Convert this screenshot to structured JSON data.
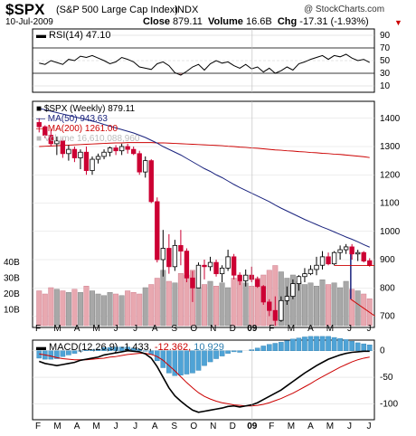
{
  "header": {
    "symbol": "$SPX",
    "full_name": "(S&P 500 Large Cap Index)",
    "exchange": "INDX",
    "credit": "@ StockCharts.com",
    "date": "10-Jul-2009",
    "close_label": "Close",
    "close_value": "879.11",
    "volume_label": "Volume",
    "volume_value": "16.6B",
    "chg_label": "Chg",
    "chg_value": "-17.31 (-1.93%)",
    "chg_arrow": "▼"
  },
  "colors": {
    "up": "#000000",
    "down": "#cc0033",
    "ma50": "#1a237e",
    "ma200": "#cc0000",
    "volume_up": "#a8a8a8",
    "volume_down": "#e8a8b0",
    "macd_hist": "#4fa3d6",
    "macd_line": "#000000",
    "signal_line": "#cc0000"
  },
  "x_axis": {
    "labels": [
      "F",
      "M",
      "A",
      "M",
      "J",
      "J",
      "A",
      "S",
      "O",
      "N",
      "D",
      "09",
      "F",
      "M",
      "A",
      "M",
      "J",
      "J"
    ]
  },
  "chart_data": [
    {
      "type": "line",
      "title": "RSI(14) 47.10",
      "legend": [
        {
          "name": "RSI(14)",
          "value": "47.10"
        }
      ],
      "y_ticks": [
        90,
        70,
        50,
        30,
        10
      ],
      "ylim": [
        0,
        100
      ],
      "levels": [
        70,
        30
      ],
      "series": [
        {
          "name": "RSI(14)",
          "values": [
            46,
            44,
            50,
            47,
            44,
            52,
            50,
            57,
            55,
            58,
            54,
            50,
            45,
            48,
            55,
            52,
            48,
            40,
            38,
            36,
            45,
            48,
            42,
            31,
            27,
            33,
            40,
            44,
            35,
            45,
            50,
            46,
            48,
            42,
            38,
            44,
            37,
            40,
            32,
            38,
            30,
            34,
            40,
            35,
            45,
            48,
            52,
            55,
            58,
            52,
            58,
            56,
            60,
            54,
            50,
            52,
            47
          ]
        }
      ]
    },
    {
      "type": "candlestick",
      "title": "$SPX (Weekly) 879.11",
      "legend": [
        {
          "name": "$SPX (Weekly)",
          "value": "879.11"
        },
        {
          "name": "MA(50)",
          "value": "943.63"
        },
        {
          "name": "MA(200)",
          "value": "1261.00"
        },
        {
          "name": "Volume",
          "value": "16,610,088,960"
        }
      ],
      "y_ticks": [
        1400,
        1300,
        1200,
        1100,
        1000,
        900,
        800,
        700
      ],
      "ylim": [
        660,
        1460
      ],
      "price_ticks_shown": [
        "1400",
        "1300",
        "1200",
        "1100",
        "1000",
        "900",
        "800",
        "700"
      ],
      "volume_ticks_shown": [
        "40B",
        "30B",
        "20B",
        "10B"
      ],
      "volume_ylim": [
        0,
        40
      ],
      "candles": [
        {
          "o": 1385,
          "h": 1400,
          "l": 1350,
          "c": 1370
        },
        {
          "o": 1370,
          "h": 1375,
          "l": 1330,
          "c": 1340
        },
        {
          "o": 1340,
          "h": 1360,
          "l": 1300,
          "c": 1310
        },
        {
          "o": 1310,
          "h": 1335,
          "l": 1270,
          "c": 1320
        },
        {
          "o": 1320,
          "h": 1330,
          "l": 1260,
          "c": 1275
        },
        {
          "o": 1275,
          "h": 1305,
          "l": 1250,
          "c": 1290
        },
        {
          "o": 1290,
          "h": 1300,
          "l": 1245,
          "c": 1260
        },
        {
          "o": 1260,
          "h": 1290,
          "l": 1220,
          "c": 1280
        },
        {
          "o": 1280,
          "h": 1300,
          "l": 1200,
          "c": 1215
        },
        {
          "o": 1215,
          "h": 1265,
          "l": 1200,
          "c": 1255
        },
        {
          "o": 1255,
          "h": 1275,
          "l": 1240,
          "c": 1265
        },
        {
          "o": 1265,
          "h": 1290,
          "l": 1255,
          "c": 1280
        },
        {
          "o": 1280,
          "h": 1300,
          "l": 1265,
          "c": 1295
        },
        {
          "o": 1295,
          "h": 1305,
          "l": 1270,
          "c": 1285
        },
        {
          "o": 1285,
          "h": 1310,
          "l": 1270,
          "c": 1300
        },
        {
          "o": 1300,
          "h": 1310,
          "l": 1275,
          "c": 1290
        },
        {
          "o": 1290,
          "h": 1300,
          "l": 1270,
          "c": 1275
        },
        {
          "o": 1275,
          "h": 1285,
          "l": 1200,
          "c": 1210
        },
        {
          "o": 1210,
          "h": 1265,
          "l": 1190,
          "c": 1250
        },
        {
          "o": 1250,
          "h": 1255,
          "l": 1100,
          "c": 1105
        },
        {
          "o": 1105,
          "h": 1120,
          "l": 890,
          "c": 900
        },
        {
          "o": 900,
          "h": 1005,
          "l": 840,
          "c": 940
        },
        {
          "o": 940,
          "h": 990,
          "l": 850,
          "c": 875
        },
        {
          "o": 875,
          "h": 970,
          "l": 860,
          "c": 950
        },
        {
          "o": 950,
          "h": 1005,
          "l": 880,
          "c": 930
        },
        {
          "o": 930,
          "h": 940,
          "l": 820,
          "c": 835
        },
        {
          "o": 835,
          "h": 860,
          "l": 750,
          "c": 800
        },
        {
          "o": 800,
          "h": 890,
          "l": 800,
          "c": 880
        },
        {
          "o": 880,
          "h": 900,
          "l": 830,
          "c": 875
        },
        {
          "o": 875,
          "h": 910,
          "l": 860,
          "c": 890
        },
        {
          "o": 890,
          "h": 900,
          "l": 840,
          "c": 850
        },
        {
          "o": 850,
          "h": 880,
          "l": 820,
          "c": 870
        },
        {
          "o": 870,
          "h": 935,
          "l": 860,
          "c": 910
        },
        {
          "o": 910,
          "h": 920,
          "l": 830,
          "c": 845
        },
        {
          "o": 845,
          "h": 855,
          "l": 810,
          "c": 825
        },
        {
          "o": 825,
          "h": 865,
          "l": 805,
          "c": 845
        },
        {
          "o": 845,
          "h": 875,
          "l": 820,
          "c": 830
        },
        {
          "o": 830,
          "h": 840,
          "l": 800,
          "c": 805
        },
        {
          "o": 805,
          "h": 810,
          "l": 740,
          "c": 750
        },
        {
          "o": 750,
          "h": 760,
          "l": 700,
          "c": 720
        },
        {
          "o": 720,
          "h": 770,
          "l": 666,
          "c": 685
        },
        {
          "o": 685,
          "h": 770,
          "l": 680,
          "c": 755
        },
        {
          "o": 755,
          "h": 805,
          "l": 740,
          "c": 770
        },
        {
          "o": 770,
          "h": 830,
          "l": 760,
          "c": 815
        },
        {
          "o": 815,
          "h": 845,
          "l": 790,
          "c": 840
        },
        {
          "o": 840,
          "h": 870,
          "l": 820,
          "c": 850
        },
        {
          "o": 850,
          "h": 880,
          "l": 845,
          "c": 865
        },
        {
          "o": 865,
          "h": 910,
          "l": 845,
          "c": 880
        },
        {
          "o": 880,
          "h": 930,
          "l": 865,
          "c": 910
        },
        {
          "o": 910,
          "h": 925,
          "l": 880,
          "c": 885
        },
        {
          "o": 885,
          "h": 930,
          "l": 880,
          "c": 925
        },
        {
          "o": 925,
          "h": 950,
          "l": 900,
          "c": 935
        },
        {
          "o": 935,
          "h": 955,
          "l": 920,
          "c": 945
        },
        {
          "o": 945,
          "h": 955,
          "l": 900,
          "c": 920
        },
        {
          "o": 920,
          "h": 935,
          "l": 895,
          "c": 925
        },
        {
          "o": 925,
          "h": 930,
          "l": 890,
          "c": 895
        },
        {
          "o": 896,
          "h": 905,
          "l": 875,
          "c": 879
        }
      ],
      "ma50": [
        1435,
        1430,
        1425,
        1420,
        1415,
        1410,
        1405,
        1400,
        1395,
        1390,
        1385,
        1378,
        1372,
        1366,
        1360,
        1354,
        1348,
        1340,
        1332,
        1322,
        1312,
        1300,
        1290,
        1280,
        1270,
        1258,
        1246,
        1234,
        1222,
        1212,
        1200,
        1190,
        1178,
        1166,
        1155,
        1145,
        1135,
        1125,
        1115,
        1105,
        1093,
        1082,
        1072,
        1062,
        1052,
        1042,
        1033,
        1024,
        1015,
        1007,
        998,
        989,
        980,
        972,
        963,
        953,
        944
      ],
      "ma200": [
        1300,
        1301,
        1302,
        1303,
        1304,
        1305,
        1306,
        1307,
        1308,
        1309,
        1310,
        1311,
        1312,
        1313,
        1313,
        1314,
        1314,
        1314,
        1314,
        1314,
        1313,
        1313,
        1312,
        1311,
        1310,
        1309,
        1308,
        1307,
        1306,
        1305,
        1304,
        1303,
        1301,
        1300,
        1298,
        1297,
        1295,
        1294,
        1292,
        1290,
        1288,
        1287,
        1285,
        1284,
        1282,
        1281,
        1279,
        1278,
        1276,
        1275,
        1273,
        1272,
        1270,
        1268,
        1266,
        1264,
        1261
      ],
      "volume": [
        22,
        20,
        24,
        23,
        22,
        21,
        23,
        21,
        25,
        22,
        20,
        19,
        21,
        20,
        19,
        22,
        21,
        20,
        24,
        26,
        30,
        35,
        28,
        27,
        33,
        32,
        35,
        24,
        26,
        28,
        25,
        27,
        24,
        30,
        28,
        27,
        25,
        30,
        32,
        35,
        38,
        34,
        30,
        32,
        28,
        26,
        27,
        25,
        29,
        26,
        27,
        24,
        28,
        23,
        22,
        20,
        17
      ],
      "overlay_lines": [
        {
          "name": "ma50-drop",
          "points": [
            [
              55,
              943
            ],
            [
              55,
              760
            ]
          ]
        },
        {
          "name": "ma50-trail",
          "points": [
            [
              55,
              760
            ],
            [
              56,
              740
            ],
            [
              57,
              720
            ]
          ]
        }
      ]
    },
    {
      "type": "line",
      "title": "MACD(12,26,9) -1.433, -12.362, 10.929",
      "legend": [
        {
          "name": "MACD(12,26,9)",
          "value": "-1.433,"
        },
        {
          "name": "signal",
          "value": "-12.362,"
        },
        {
          "name": "histogram",
          "value": "10.929"
        }
      ],
      "y_ticks": [
        0,
        -50,
        -100
      ],
      "ylim": [
        -130,
        20
      ],
      "series": [
        {
          "name": "MACD",
          "values": [
            -20,
            -24,
            -26,
            -28,
            -26,
            -24,
            -22,
            -18,
            -16,
            -14,
            -12,
            -8,
            -6,
            -4,
            -2,
            0,
            -1,
            -2,
            -6,
            -14,
            -30,
            -50,
            -70,
            -85,
            -95,
            -104,
            -112,
            -116,
            -114,
            -112,
            -110,
            -108,
            -105,
            -104,
            -106,
            -104,
            -102,
            -98,
            -92,
            -86,
            -80,
            -74,
            -66,
            -58,
            -50,
            -42,
            -35,
            -28,
            -22,
            -16,
            -12,
            -8,
            -5,
            -3,
            -2,
            -1,
            -1
          ]
        },
        {
          "name": "Signal",
          "values": [
            -6,
            -8,
            -10,
            -13,
            -15,
            -16,
            -17,
            -17,
            -17,
            -16,
            -15,
            -14,
            -12,
            -11,
            -9,
            -7,
            -6,
            -5,
            -5,
            -7,
            -11,
            -18,
            -28,
            -38,
            -49,
            -60,
            -70,
            -79,
            -86,
            -91,
            -95,
            -98,
            -100,
            -102,
            -103,
            -104,
            -104,
            -103,
            -101,
            -98,
            -94,
            -90,
            -85,
            -80,
            -74,
            -68,
            -62,
            -55,
            -49,
            -43,
            -37,
            -31,
            -26,
            -21,
            -17,
            -14,
            -12
          ]
        },
        {
          "name": "Histogram",
          "values": [
            -14,
            -16,
            -16,
            -15,
            -11,
            -8,
            -5,
            -1,
            1,
            2,
            3,
            6,
            6,
            7,
            7,
            7,
            5,
            3,
            -1,
            -7,
            -19,
            -32,
            -42,
            -47,
            -46,
            -44,
            -42,
            -37,
            -28,
            -21,
            -15,
            -10,
            -5,
            -2,
            -3,
            0,
            2,
            5,
            9,
            12,
            14,
            16,
            19,
            22,
            24,
            26,
            27,
            27,
            27,
            27,
            25,
            23,
            21,
            18,
            15,
            13,
            11
          ]
        }
      ]
    }
  ]
}
